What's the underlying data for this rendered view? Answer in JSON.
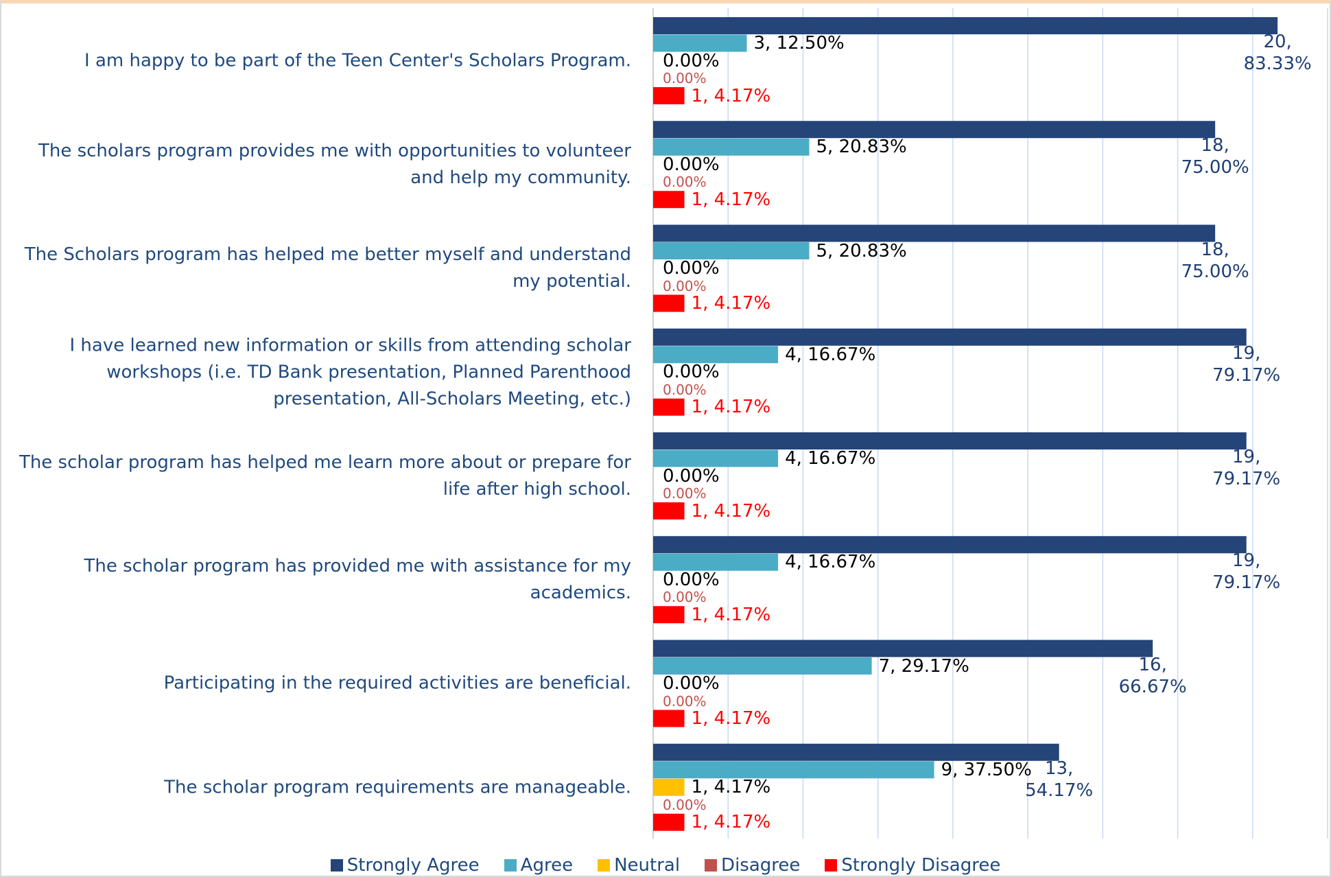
{
  "chart_data": {
    "type": "hbar",
    "categories": [
      "I am happy to be part of the Teen Center's Scholars Program.",
      "The scholars program provides me with opportunities to volunteer and help my community.",
      "The Scholars program has helped me better myself and understand my potential.",
      "I have learned new information or skills from attending scholar workshops (i.e. TD Bank presentation, Planned Parenthood presentation, All-Scholars Meeting, etc.)",
      "The scholar program has helped me learn more about or prepare for life after high school.",
      "The scholar program has provided me with assistance for my academics.",
      "Participating in the required activities are beneficial.",
      "The scholar program requirements are manageable."
    ],
    "series": [
      {
        "name": "Strongly Agree",
        "color": "#254478",
        "label_color": "#1f3f73",
        "values": [
          83.33,
          75.0,
          75.0,
          79.17,
          79.17,
          79.17,
          66.67,
          54.17
        ],
        "value_labels": [
          "20, 83.33%",
          "18, 75.00%",
          "18, 75.00%",
          "19, 79.17%",
          "19, 79.17%",
          "19, 79.17%",
          "16, 66.67%",
          "13, 54.17%"
        ]
      },
      {
        "name": "Agree",
        "color": "#4bacc6",
        "label_color": "#000000",
        "values": [
          12.5,
          20.83,
          20.83,
          16.67,
          16.67,
          16.67,
          29.17,
          37.5
        ],
        "value_labels": [
          "3, 12.50%",
          "5, 20.83%",
          "5, 20.83%",
          "4, 16.67%",
          "4, 16.67%",
          "4, 16.67%",
          "7, 29.17%",
          "9, 37.50%"
        ]
      },
      {
        "name": "Neutral",
        "color": "#ffc000",
        "label_color": "#000000",
        "values": [
          0,
          0,
          0,
          0,
          0,
          0,
          0,
          4.17
        ],
        "value_labels": [
          "0.00%",
          "0.00%",
          "0.00%",
          "0.00%",
          "0.00%",
          "0.00%",
          "0.00%",
          "1, 4.17%"
        ]
      },
      {
        "name": "Disagree",
        "color": "#c0504d",
        "label_color": "#c0504d",
        "values": [
          0,
          0,
          0,
          0,
          0,
          0,
          0,
          0
        ],
        "value_labels": [
          "0.00%",
          "0.00%",
          "0.00%",
          "0.00%",
          "0.00%",
          "0.00%",
          "0.00%",
          "0.00%"
        ]
      },
      {
        "name": "Strongly Disagree",
        "color": "#ff0000",
        "label_color": "#ff0000",
        "values": [
          4.17,
          4.17,
          4.17,
          4.17,
          4.17,
          4.17,
          4.17,
          4.17
        ],
        "value_labels": [
          "1, 4.17%",
          "1, 4.17%",
          "1, 4.17%",
          "1, 4.17%",
          "1, 4.17%",
          "1, 4.17%",
          "1, 4.17%",
          "1, 4.17%"
        ]
      }
    ],
    "xlim": [
      0,
      90
    ],
    "xticks": [
      0,
      10,
      20,
      30,
      40,
      50,
      60,
      70,
      80,
      90
    ],
    "grid": true,
    "legend": "bottom"
  }
}
